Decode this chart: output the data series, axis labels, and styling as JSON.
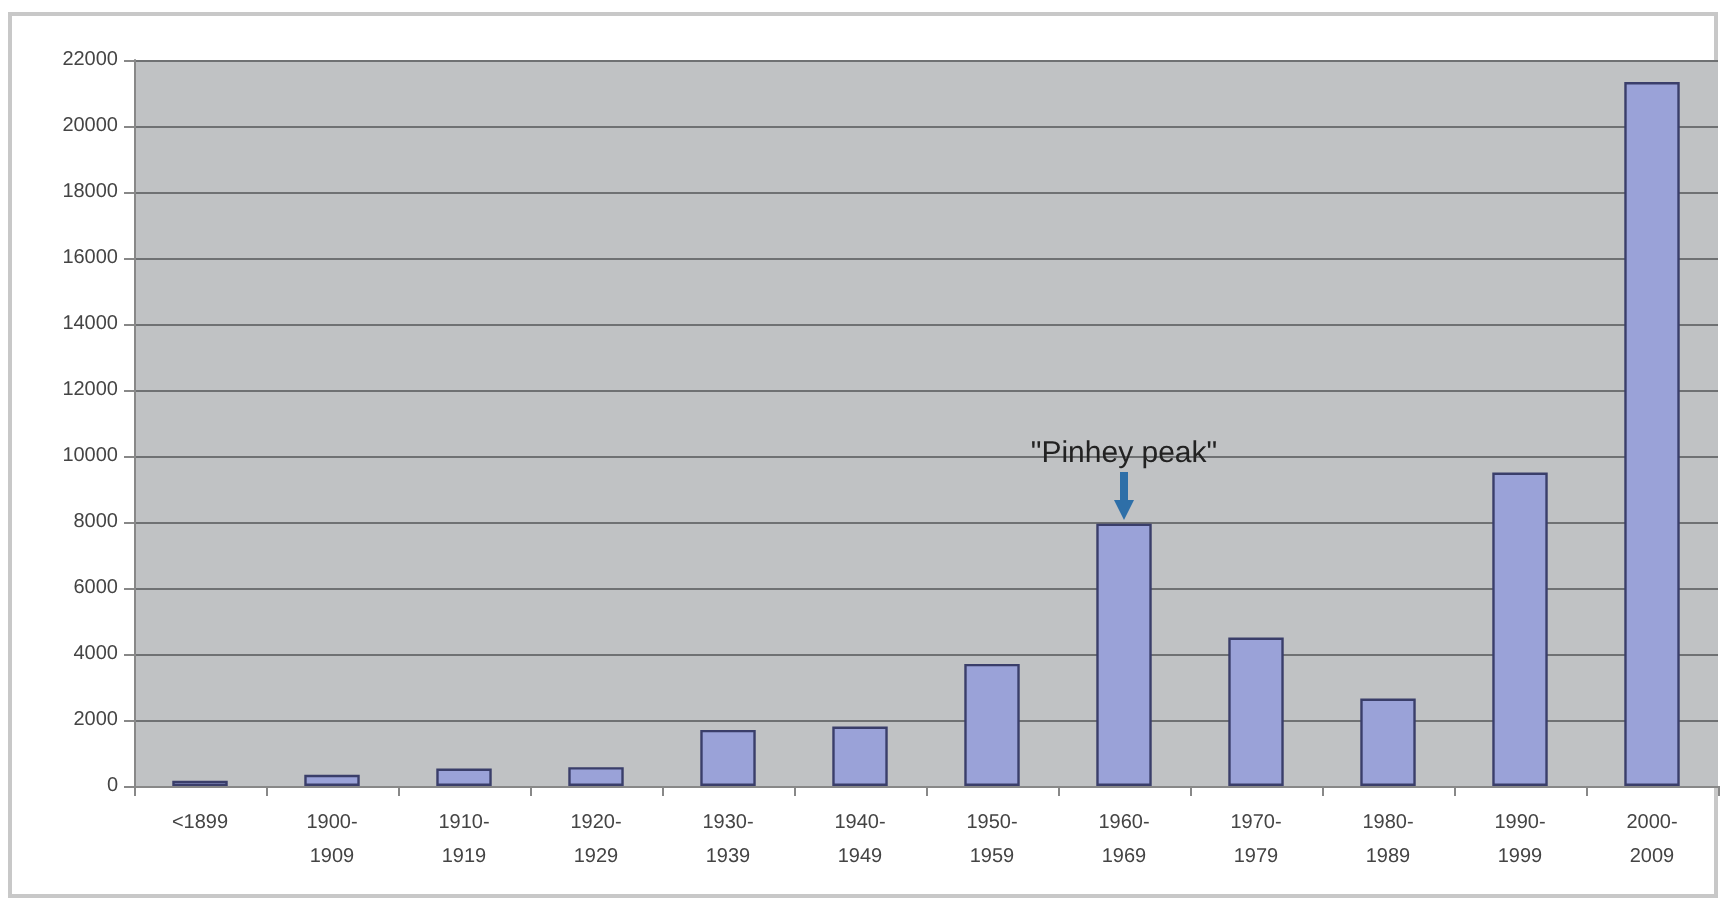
{
  "chart_data": {
    "type": "bar",
    "categories": [
      "<1899",
      "1900-\n1909",
      "1910-\n1919",
      "1920-\n1929",
      "1930-\n1939",
      "1940-\n1949",
      "1950-\n1959",
      "1960-\n1969",
      "1970-\n1979",
      "1980-\n1989",
      "1990-\n1999",
      "2000-\n2009"
    ],
    "values": [
      160,
      340,
      530,
      570,
      1700,
      1800,
      3700,
      7950,
      4500,
      2650,
      9500,
      21330
    ],
    "color": "#9aa2d8",
    "ylim": [
      0,
      22000
    ],
    "yticks": [
      0,
      2000,
      4000,
      6000,
      8000,
      10000,
      12000,
      14000,
      16000,
      18000,
      20000,
      22000
    ],
    "grid": "y",
    "annotations": [
      {
        "text": "\"Pinhey peak\"",
        "x": "1960-\n1969",
        "y": 7950
      }
    ]
  }
}
